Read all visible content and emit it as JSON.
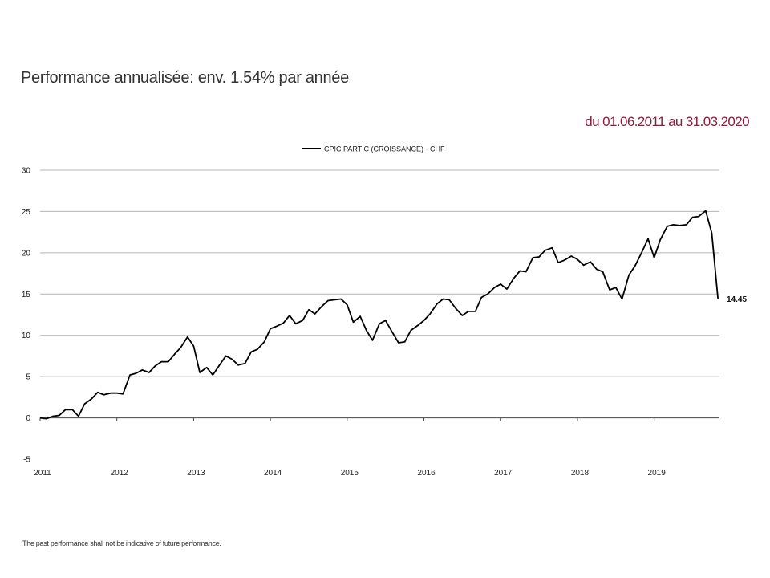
{
  "header": {
    "title": "Performance annualisée: env. 1.54% par année",
    "period": "du 01.06.2011 au 31.03.2020",
    "period_color": "#8b1d3c"
  },
  "footer": {
    "disclaimer": "The past performance shall not be indicative of future performance."
  },
  "chart_data": {
    "type": "line",
    "title": "",
    "xlabel": "",
    "ylabel": "",
    "legend_position": "top-center",
    "grid": "horizontal",
    "ylim": [
      -5,
      30
    ],
    "y_ticks": [
      30,
      25,
      20,
      15,
      10,
      5,
      0,
      -5
    ],
    "x_range": [
      2011.0,
      2019.85
    ],
    "x_ticks": [
      "2011",
      "2012",
      "2013",
      "2014",
      "2015",
      "2016",
      "2017",
      "2018",
      "2019"
    ],
    "series": [
      {
        "name": "CPIC PART C (CROISSANCE) - CHF",
        "color": "#000000",
        "end_label": "14.45",
        "x": [
          2011.0,
          2011.08,
          2011.17,
          2011.25,
          2011.33,
          2011.42,
          2011.5,
          2011.58,
          2011.67,
          2011.75,
          2011.83,
          2011.92,
          2012.0,
          2012.08,
          2012.17,
          2012.25,
          2012.33,
          2012.42,
          2012.5,
          2012.58,
          2012.67,
          2012.75,
          2012.83,
          2012.92,
          2013.0,
          2013.08,
          2013.17,
          2013.25,
          2013.33,
          2013.42,
          2013.5,
          2013.58,
          2013.67,
          2013.75,
          2013.83,
          2013.92,
          2014.0,
          2014.08,
          2014.17,
          2014.25,
          2014.33,
          2014.42,
          2014.5,
          2014.58,
          2014.67,
          2014.75,
          2014.83,
          2014.92,
          2015.0,
          2015.08,
          2015.17,
          2015.25,
          2015.33,
          2015.42,
          2015.5,
          2015.58,
          2015.67,
          2015.75,
          2015.83,
          2015.92,
          2016.0,
          2016.08,
          2016.17,
          2016.25,
          2016.33,
          2016.42,
          2016.5,
          2016.58,
          2016.67,
          2016.75,
          2016.83,
          2016.92,
          2017.0,
          2017.08,
          2017.17,
          2017.25,
          2017.33,
          2017.42,
          2017.5,
          2017.58,
          2017.67,
          2017.75,
          2017.83,
          2017.92,
          2018.0,
          2018.08,
          2018.17,
          2018.25,
          2018.33,
          2018.42,
          2018.5,
          2018.58,
          2018.67,
          2018.75,
          2018.83,
          2018.92,
          2019.0,
          2019.08,
          2019.17,
          2019.25,
          2019.33,
          2019.42,
          2019.5,
          2019.58,
          2019.67,
          2019.75,
          2019.83
        ],
        "values": [
          0.0,
          -0.1,
          0.2,
          0.3,
          1.0,
          1.0,
          0.2,
          1.7,
          2.3,
          3.1,
          2.8,
          3.0,
          3.0,
          2.9,
          5.2,
          5.4,
          5.8,
          5.5,
          6.3,
          6.8,
          6.8,
          7.7,
          8.5,
          9.8,
          8.7,
          5.5,
          6.1,
          5.2,
          6.3,
          7.5,
          7.1,
          6.4,
          6.6,
          8.0,
          8.3,
          9.2,
          10.8,
          11.1,
          11.5,
          12.4,
          11.4,
          11.8,
          13.1,
          12.6,
          13.5,
          14.2,
          14.3,
          14.4,
          13.7,
          11.6,
          12.3,
          10.6,
          9.4,
          11.4,
          11.8,
          10.5,
          9.1,
          9.2,
          10.6,
          11.2,
          11.8,
          12.6,
          13.8,
          14.4,
          14.3,
          13.2,
          12.4,
          12.9,
          12.9,
          14.6,
          15.0,
          15.8,
          16.2,
          15.6,
          16.9,
          17.8,
          17.7,
          19.4,
          19.5,
          20.3,
          20.6,
          18.8,
          19.1,
          19.6,
          19.2,
          18.5,
          18.9,
          18.0,
          17.7,
          15.5,
          15.8,
          14.4,
          17.3,
          18.4,
          19.9,
          21.7,
          19.4,
          21.6,
          23.2,
          23.4,
          23.3,
          23.4,
          24.3,
          24.4,
          25.1,
          22.4,
          14.45
        ]
      }
    ]
  }
}
